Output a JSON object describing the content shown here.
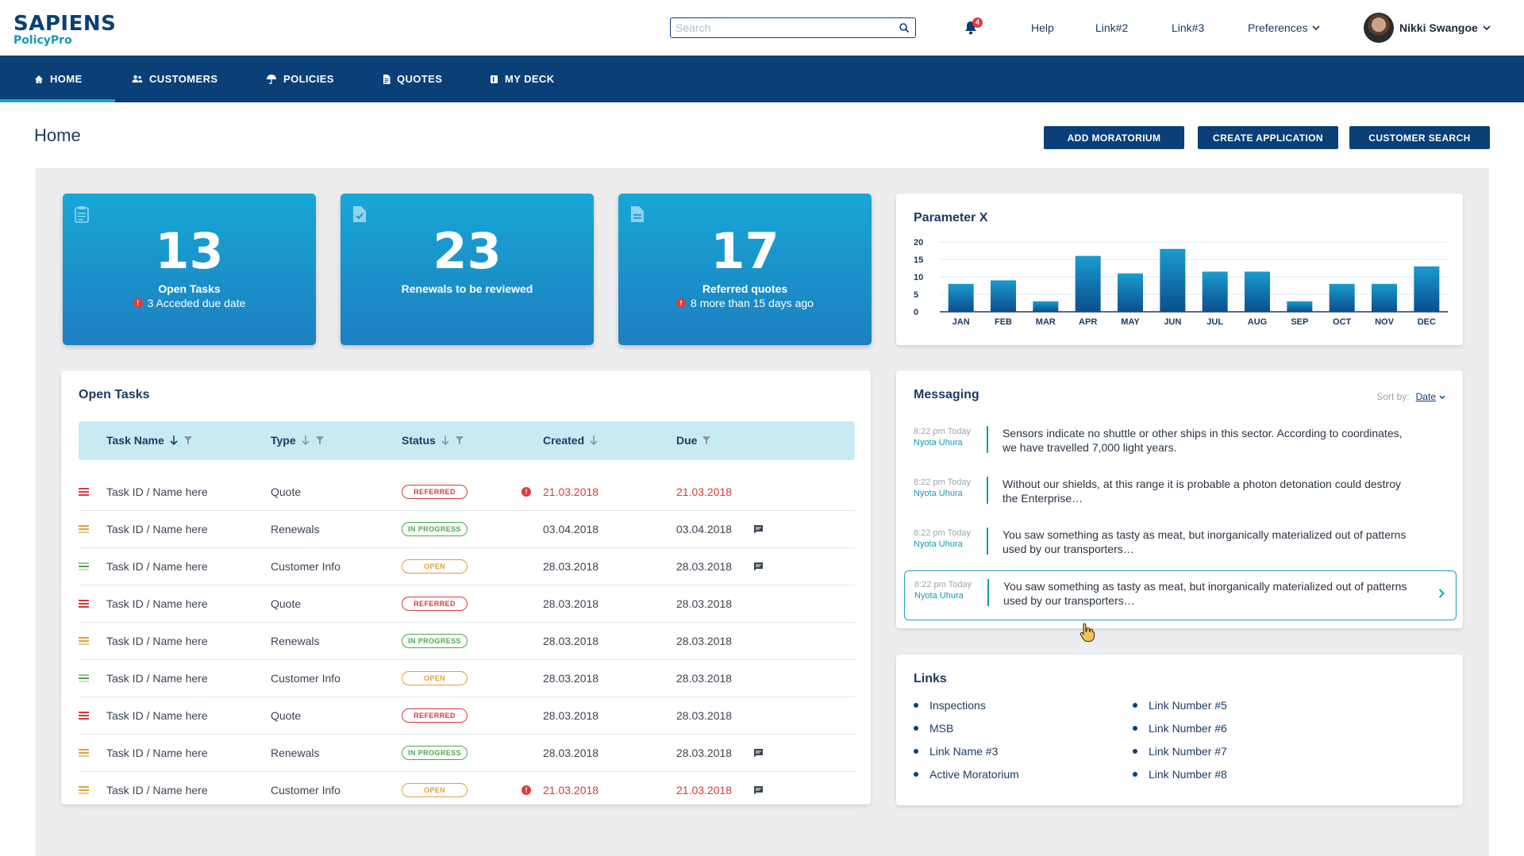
{
  "brand": {
    "name": "SAPIENS",
    "product": "PolicyPro"
  },
  "search": {
    "placeholder": "Search"
  },
  "notifications": {
    "count": "4"
  },
  "top_links": [
    "Help",
    "Link#2",
    "Link#3",
    "Preferences"
  ],
  "user": {
    "name": "Nikki Swangoe"
  },
  "nav": [
    {
      "label": "HOME",
      "icon": "home-icon",
      "active": true
    },
    {
      "label": "CUSTOMERS",
      "icon": "people-icon"
    },
    {
      "label": "POLICIES",
      "icon": "umbrella-icon"
    },
    {
      "label": "QUOTES",
      "icon": "document-icon"
    },
    {
      "label": "MY DECK",
      "icon": "deck-icon"
    }
  ],
  "page": {
    "title": "Home"
  },
  "actions": [
    "ADD MORATORIUM",
    "CREATE APPLICATION",
    "CUSTOMER SEARCH"
  ],
  "kpis": [
    {
      "value": "13",
      "label": "Open Tasks",
      "sub": "3 Acceded due date",
      "warn": true,
      "icon": "clipboard-icon"
    },
    {
      "value": "23",
      "label": "Renewals to be reviewed",
      "sub": "",
      "warn": false,
      "icon": "doc-check-icon"
    },
    {
      "value": "17",
      "label": "Referred quotes",
      "sub": "8 more than 15 days ago",
      "warn": true,
      "icon": "doc-icon"
    }
  ],
  "chart_data": {
    "type": "bar",
    "title": "Parameter X",
    "categories": [
      "JAN",
      "FEB",
      "MAR",
      "APR",
      "MAY",
      "JUN",
      "JUL",
      "AUG",
      "SEP",
      "OCT",
      "NOV",
      "DEC"
    ],
    "values": [
      8,
      9,
      3,
      16,
      11,
      18,
      11.5,
      11.5,
      3,
      8,
      8,
      13
    ],
    "yticks": [
      0,
      5,
      10,
      15,
      20
    ],
    "ylim": [
      0,
      20
    ],
    "grid": true,
    "xlabel": "",
    "ylabel": ""
  },
  "tasks": {
    "title": "Open Tasks",
    "columns": [
      "Task Name",
      "Type",
      "Status",
      "Created",
      "Due"
    ],
    "rows": [
      {
        "priority": "high",
        "name": "Task ID / Name here",
        "type": "Quote",
        "status": "REFERRED",
        "created": "21.03.2018",
        "due": "21.03.2018",
        "overdue": true,
        "chat": false
      },
      {
        "priority": "medium",
        "name": "Task ID / Name here",
        "type": "Renewals",
        "status": "IN PROGRESS",
        "created": "03.04.2018",
        "due": "03.04.2018",
        "overdue": false,
        "chat": true
      },
      {
        "priority": "low",
        "name": "Task ID / Name here",
        "type": "Customer Info",
        "status": "OPEN",
        "created": "28.03.2018",
        "due": "28.03.2018",
        "overdue": false,
        "chat": true
      },
      {
        "priority": "high",
        "name": "Task ID / Name here",
        "type": "Quote",
        "status": "REFERRED",
        "created": "28.03.2018",
        "due": "28.03.2018",
        "overdue": false,
        "chat": false
      },
      {
        "priority": "medium",
        "name": "Task ID / Name here",
        "type": "Renewals",
        "status": "IN PROGRESS",
        "created": "28.03.2018",
        "due": "28.03.2018",
        "overdue": false,
        "chat": false
      },
      {
        "priority": "low",
        "name": "Task ID / Name here",
        "type": "Customer Info",
        "status": "OPEN",
        "created": "28.03.2018",
        "due": "28.03.2018",
        "overdue": false,
        "chat": false
      },
      {
        "priority": "high",
        "name": "Task ID / Name here",
        "type": "Quote",
        "status": "REFERRED",
        "created": "28.03.2018",
        "due": "28.03.2018",
        "overdue": false,
        "chat": false
      },
      {
        "priority": "medium",
        "name": "Task ID / Name here",
        "type": "Renewals",
        "status": "IN PROGRESS",
        "created": "28.03.2018",
        "due": "28.03.2018",
        "overdue": false,
        "chat": true
      },
      {
        "priority": "medium",
        "name": "Task ID / Name here",
        "type": "Customer Info",
        "status": "OPEN",
        "created": "21.03.2018",
        "due": "21.03.2018",
        "overdue": true,
        "chat": true
      }
    ]
  },
  "messaging": {
    "title": "Messaging",
    "sort_label": "Sort by:",
    "sort_value": "Date",
    "messages": [
      {
        "time": "8:22 pm Today",
        "from": "Nyota Uhura",
        "text": "Sensors indicate no shuttle or other ships in this sector. According to coordinates, we have travelled 7,000 light years.",
        "selected": false
      },
      {
        "time": "8:22 pm Today",
        "from": "Nyota Uhura",
        "text": "Without our shields, at this range it is probable a photon detonation could destroy the Enterprise…",
        "selected": false
      },
      {
        "time": "8:22 pm Today",
        "from": "Nyota Uhura",
        "text": "You saw something as tasty as meat, but inorganically materialized out of patterns used by our transporters…",
        "selected": false
      },
      {
        "time": "8:22 pm Today",
        "from": "Nyota Uhura",
        "text": "You saw something as tasty as meat, but inorganically materialized out of patterns used by our transporters…",
        "selected": true
      }
    ]
  },
  "links": {
    "title": "Links",
    "col1": [
      "Inspections",
      "MSB",
      "Link Name #3",
      "Active Moratorium"
    ],
    "col2": [
      "Link Number #5",
      "Link Number #6",
      "Link Number #7",
      "Link Number #8"
    ]
  },
  "colors": {
    "primary": "#0a3f78",
    "accent": "#1697b7",
    "danger": "#d63a3a",
    "success": "#4aa84a",
    "warning": "#e0a13a"
  }
}
